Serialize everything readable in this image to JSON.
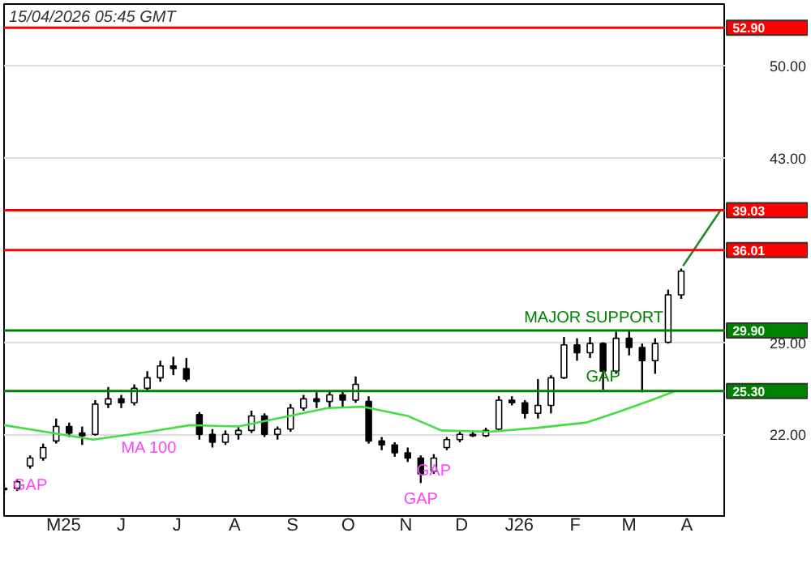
{
  "chart_data": {
    "type": "candlestick",
    "title": "15/04/2026 05:45 GMT",
    "xlim": [
      "2025-04-14",
      "2026-05-07"
    ],
    "xticks": [
      {
        "value": "2025-05-16",
        "label": "M25"
      },
      {
        "value": "2025-06-16",
        "label": "J"
      },
      {
        "value": "2025-07-16",
        "label": "J"
      },
      {
        "value": "2025-08-16",
        "label": "A"
      },
      {
        "value": "2025-09-16",
        "label": "S"
      },
      {
        "value": "2025-10-16",
        "label": "O"
      },
      {
        "value": "2025-11-16",
        "label": "N"
      },
      {
        "value": "2025-12-16",
        "label": "D"
      },
      {
        "value": "2026-01-16",
        "label": "J26"
      },
      {
        "value": "2026-02-15",
        "label": "F"
      },
      {
        "value": "2026-03-16",
        "label": "M"
      },
      {
        "value": "2026-04-16",
        "label": "A"
      }
    ],
    "ylim": [
      15.8,
      54.7
    ],
    "yticks": [
      {
        "value": 22,
        "label": "22.00"
      },
      {
        "value": 29,
        "label": "29.00"
      },
      {
        "value": 43,
        "label": "43.00"
      },
      {
        "value": 50,
        "label": "50.00"
      }
    ],
    "grid": "y",
    "series": [
      {
        "color": "#000000",
        "x": [
          "2025-04-14",
          "2025-04-21",
          "2025-04-28",
          "2025-05-05",
          "2025-05-12",
          "2025-05-19",
          "2025-05-26",
          "2025-06-02",
          "2025-06-09",
          "2025-06-16",
          "2025-06-23",
          "2025-06-30",
          "2025-07-07",
          "2025-07-14",
          "2025-07-21",
          "2025-07-28",
          "2025-08-04",
          "2025-08-11",
          "2025-08-18",
          "2025-08-25",
          "2025-09-01",
          "2025-09-08",
          "2025-09-15",
          "2025-09-22",
          "2025-09-29",
          "2025-10-06",
          "2025-10-13",
          "2025-10-20",
          "2025-10-27",
          "2025-11-03",
          "2025-11-10",
          "2025-11-17",
          "2025-11-24",
          "2025-12-01",
          "2025-12-08",
          "2025-12-15",
          "2025-12-22",
          "2025-12-29",
          "2026-01-05",
          "2026-01-12",
          "2026-01-19",
          "2026-01-26",
          "2026-02-02",
          "2026-02-09",
          "2026-02-16",
          "2026-02-23",
          "2026-03-02",
          "2026-03-09",
          "2026-03-16",
          "2026-03-23",
          "2026-03-30",
          "2026-04-06",
          "2026-04-13"
        ],
        "ohlc": [
          [
            17.8,
            18.2,
            17.5,
            17.9
          ],
          [
            17.9,
            18.6,
            17.7,
            18.4
          ],
          [
            19.6,
            20.4,
            19.4,
            20.2
          ],
          [
            20.2,
            21.3,
            20.0,
            21.0
          ],
          [
            21.5,
            23.2,
            21.3,
            22.6
          ],
          [
            22.6,
            22.9,
            21.8,
            22.1
          ],
          [
            22.1,
            22.6,
            21.2,
            21.9
          ],
          [
            22.0,
            24.6,
            21.9,
            24.3
          ],
          [
            24.3,
            25.6,
            24.0,
            24.7
          ],
          [
            24.7,
            25.0,
            24.0,
            24.4
          ],
          [
            24.4,
            25.8,
            24.2,
            25.5
          ],
          [
            25.5,
            26.8,
            25.3,
            26.3
          ],
          [
            26.3,
            27.6,
            26.0,
            27.2
          ],
          [
            27.2,
            27.9,
            26.5,
            27.0
          ],
          [
            27.0,
            27.8,
            26.0,
            26.2
          ],
          [
            23.5,
            23.7,
            21.6,
            22.0
          ],
          [
            22.0,
            22.4,
            21.0,
            21.4
          ],
          [
            21.4,
            22.3,
            21.2,
            22.0
          ],
          [
            22.0,
            22.6,
            21.6,
            22.3
          ],
          [
            22.3,
            23.8,
            22.1,
            23.4
          ],
          [
            23.4,
            23.6,
            21.8,
            22.0
          ],
          [
            22.0,
            22.6,
            21.6,
            22.4
          ],
          [
            22.4,
            24.3,
            22.2,
            24.0
          ],
          [
            24.0,
            25.0,
            23.8,
            24.7
          ],
          [
            24.7,
            25.2,
            24.0,
            24.5
          ],
          [
            24.5,
            25.3,
            24.0,
            25.0
          ],
          [
            25.0,
            25.3,
            24.1,
            24.6
          ],
          [
            24.6,
            26.4,
            24.4,
            25.8
          ],
          [
            24.5,
            24.9,
            21.3,
            21.5
          ],
          [
            21.5,
            21.8,
            20.8,
            21.2
          ],
          [
            21.2,
            21.4,
            20.3,
            20.6
          ],
          [
            20.6,
            21.0,
            19.9,
            20.2
          ],
          [
            20.2,
            20.4,
            18.3,
            19.0
          ],
          [
            19.2,
            20.5,
            19.0,
            20.2
          ],
          [
            21.0,
            21.8,
            20.8,
            21.6
          ],
          [
            21.6,
            22.3,
            21.4,
            22.0
          ],
          [
            22.0,
            22.2,
            21.8,
            21.9
          ],
          [
            21.9,
            22.5,
            21.8,
            22.3
          ],
          [
            22.4,
            24.9,
            22.3,
            24.6
          ],
          [
            24.6,
            24.9,
            24.2,
            24.4
          ],
          [
            24.4,
            24.6,
            23.2,
            23.6
          ],
          [
            23.6,
            26.2,
            23.2,
            24.2
          ],
          [
            24.2,
            26.5,
            23.6,
            26.3
          ],
          [
            26.3,
            29.4,
            26.2,
            28.8
          ],
          [
            28.8,
            29.3,
            27.6,
            28.2
          ],
          [
            28.2,
            29.4,
            27.8,
            28.9
          ],
          [
            28.9,
            29.0,
            25.4,
            26.8
          ],
          [
            26.8,
            29.8,
            26.6,
            29.3
          ],
          [
            29.3,
            29.9,
            28.0,
            28.6
          ],
          [
            28.6,
            28.9,
            25.2,
            27.6
          ],
          [
            27.6,
            29.3,
            26.6,
            28.9
          ],
          [
            29.0,
            33.0,
            28.9,
            32.6
          ],
          [
            32.6,
            34.6,
            32.3,
            34.4
          ]
        ]
      },
      {
        "type": "line",
        "color": "#44dd44",
        "x": [
          "2025-04-14",
          "2025-06-01",
          "2025-07-01",
          "2025-07-23",
          "2025-08-18",
          "2025-10-05",
          "2025-10-24",
          "2025-11-17",
          "2025-12-05",
          "2025-12-31",
          "2026-01-26",
          "2026-02-21",
          "2026-03-10",
          "2026-03-28",
          "2026-04-10"
        ],
        "values": [
          22.7,
          21.6,
          22.2,
          22.7,
          22.6,
          24.0,
          24.1,
          23.4,
          22.3,
          22.2,
          22.5,
          22.9,
          23.7,
          24.6,
          25.3
        ]
      },
      {
        "type": "line",
        "color": "#228b22",
        "x": [
          "2026-04-14",
          "2026-05-04"
        ],
        "values": [
          34.8,
          39.0
        ]
      }
    ],
    "ref_lines": [
      {
        "axis": "y",
        "value": 52.9,
        "label": "52.90",
        "color": "#ff0000"
      },
      {
        "axis": "y",
        "value": 39.03,
        "label": "39.03",
        "color": "#ff0000"
      },
      {
        "axis": "y",
        "value": 36.01,
        "label": "36.01",
        "color": "#ff0000"
      },
      {
        "axis": "y",
        "value": 29.9,
        "label": "29.90",
        "color": "#008000"
      },
      {
        "axis": "y",
        "value": 25.3,
        "label": "25.30",
        "color": "#008000"
      }
    ],
    "annotations": [
      {
        "text": "GAP",
        "x": "2025-04-28",
        "y": 19.4
      },
      {
        "text": "MA 100",
        "x": "2025-07-01",
        "y": 22.2
      },
      {
        "text": "GAP",
        "x": "2025-12-01",
        "y": 20.5
      },
      {
        "text": "GAP",
        "x": "2025-11-24",
        "y": 18.3
      },
      {
        "text": "GAP",
        "x": "2026-03-02",
        "y": 25.4
      },
      {
        "text": "MAJOR SUPPORT",
        "x": "2026-02-25",
        "y": 29.9
      }
    ]
  }
}
